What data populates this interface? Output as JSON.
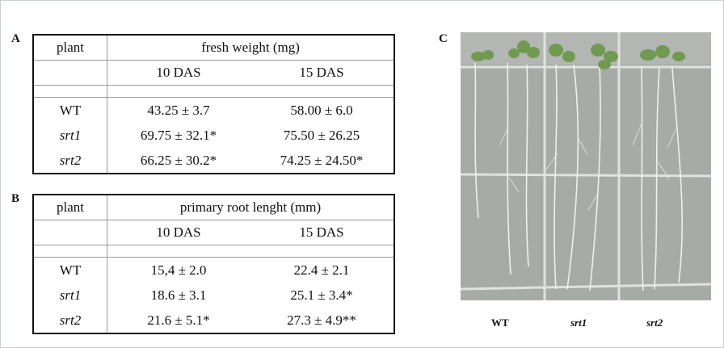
{
  "panels": {
    "A": {
      "label": "A",
      "table": {
        "header": [
          "plant",
          "fresh weight (mg)"
        ],
        "subheader": [
          "10 DAS",
          "15 DAS"
        ],
        "rows": [
          [
            "WT",
            "43.25 ± 3.7",
            "58.00 ± 6.0"
          ],
          [
            "srt1",
            "69.75 ± 32.1*",
            "75.50 ± 26.25"
          ],
          [
            "srt2",
            "66.25 ± 30.2*",
            "74.25  ± 24.50*"
          ]
        ]
      }
    },
    "B": {
      "label": "B",
      "table": {
        "header": [
          "plant",
          "primary root lenght (mm)"
        ],
        "subheader": [
          "10 DAS",
          "15 DAS"
        ],
        "rows": [
          [
            "WT",
            "15,4 ± 2.0",
            "22.4 ± 2.1"
          ],
          [
            "srt1",
            "18.6 ± 3.1",
            "25.1 ± 3.4*"
          ],
          [
            "srt2",
            "21.6 ± 5.1*",
            "27.3 ± 4.9**"
          ]
        ]
      }
    },
    "C": {
      "label": "C",
      "captions": [
        "WT",
        "srt1",
        "srt2"
      ]
    }
  }
}
